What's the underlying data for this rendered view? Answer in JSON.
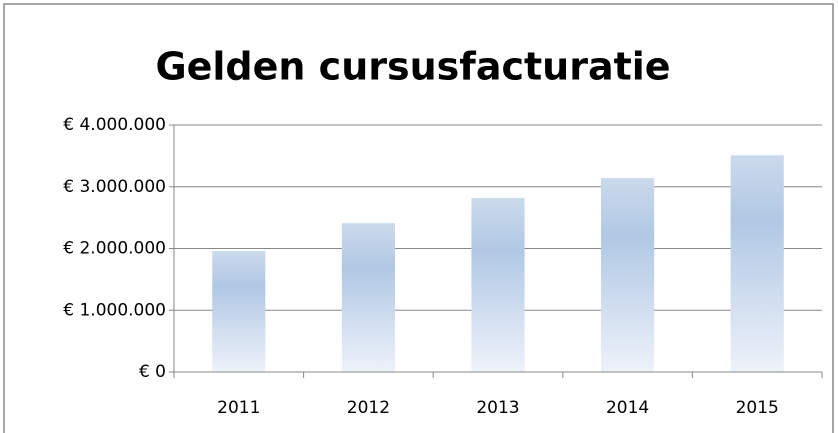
{
  "chart_data": {
    "type": "bar",
    "title": "Gelden cursusfacturatie",
    "categories": [
      "2011",
      "2012",
      "2013",
      "2014",
      "2015"
    ],
    "values": [
      1960000,
      2410000,
      2820000,
      3140000,
      3510000
    ],
    "color": "#b0c8e4",
    "ylim": [
      0,
      4000000
    ],
    "yticks": [
      {
        "value": 0,
        "label": "€ 0"
      },
      {
        "value": 1000000,
        "label": "€ 1.000.000"
      },
      {
        "value": 2000000,
        "label": "€ 2.000.000"
      },
      {
        "value": 3000000,
        "label": "€ 3.000.000"
      },
      {
        "value": 4000000,
        "label": "€ 4.000.000"
      }
    ],
    "grid": true
  }
}
